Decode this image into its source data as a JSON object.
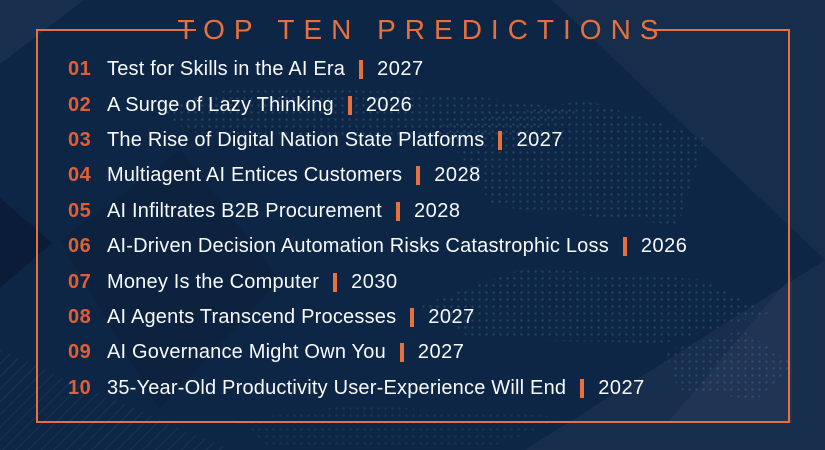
{
  "title": "TOP TEN PREDICTIONS",
  "colors": {
    "background": "#0e2646",
    "accent_orange": "#e7703c",
    "number_orange": "#e05f35",
    "text_white": "#f8fafc",
    "dots_teal": "#60aac8"
  },
  "predictions": [
    {
      "number": "01",
      "title": "Test for Skills in the AI Era",
      "year": "2027"
    },
    {
      "number": "02",
      "title": "A Surge of Lazy Thinking",
      "year": "2026"
    },
    {
      "number": "03",
      "title": "The Rise of Digital Nation State Platforms",
      "year": "2027"
    },
    {
      "number": "04",
      "title": "Multiagent AI Entices Customers",
      "year": "2028"
    },
    {
      "number": "05",
      "title": "AI Infiltrates B2B Procurement",
      "year": "2028"
    },
    {
      "number": "06",
      "title": "AI-Driven Decision Automation Risks Catastrophic Loss",
      "year": "2026"
    },
    {
      "number": "07",
      "title": "Money Is the Computer",
      "year": "2030"
    },
    {
      "number": "08",
      "title": "AI Agents Transcend Processes",
      "year": "2027"
    },
    {
      "number": "09",
      "title": "AI Governance Might Own You",
      "year": "2027"
    },
    {
      "number": "10",
      "title": "35-Year-Old Productivity User-Experience Will End",
      "year": "2027"
    }
  ]
}
